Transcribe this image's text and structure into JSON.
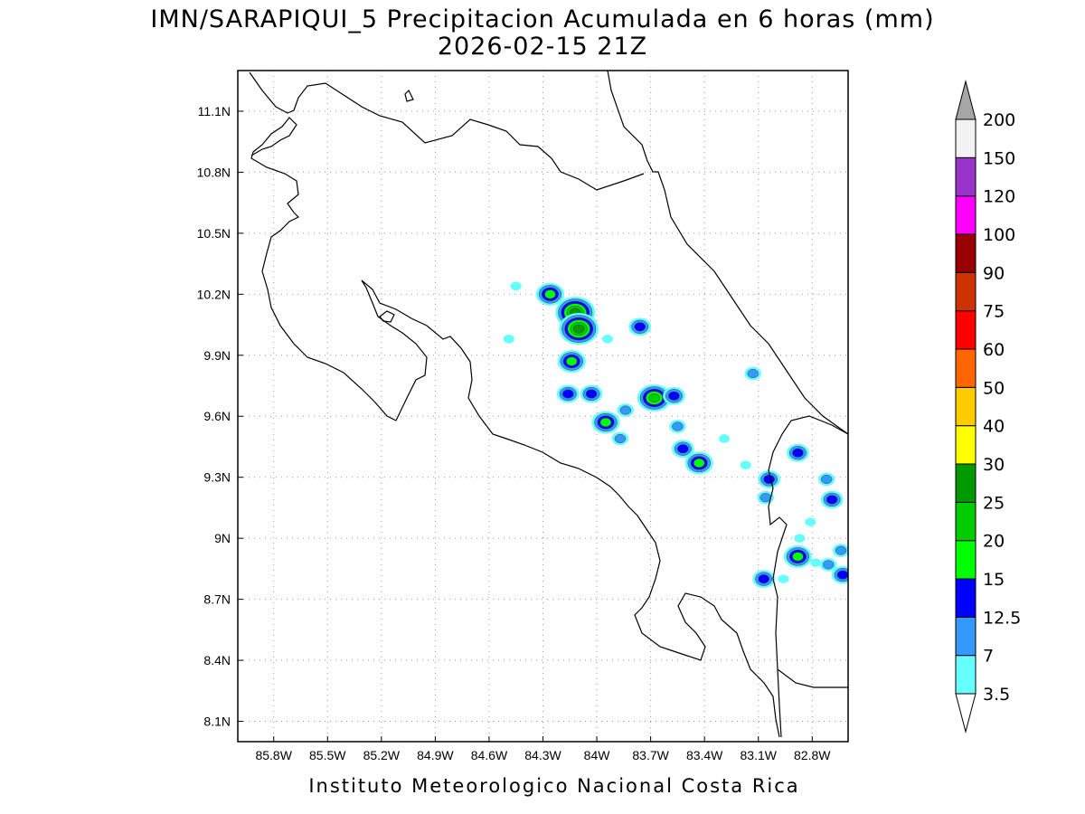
{
  "title": {
    "line1": "IMN/SARAPIQUI_5 Precipitacion Acumulada en 6 horas (mm)",
    "line2": "2026-02-15 21Z"
  },
  "footer": "Instituto Meteorologico Nacional Costa Rica",
  "map": {
    "lon_range": [
      -86.0,
      -82.6
    ],
    "lat_range": [
      8.0,
      11.3
    ],
    "x_ticks": [
      {
        "lon": -85.8,
        "label": "85.8W"
      },
      {
        "lon": -85.5,
        "label": "85.5W"
      },
      {
        "lon": -85.2,
        "label": "85.2W"
      },
      {
        "lon": -84.9,
        "label": "84.9W"
      },
      {
        "lon": -84.6,
        "label": "84.6W"
      },
      {
        "lon": -84.3,
        "label": "84.3W"
      },
      {
        "lon": -84.0,
        "label": "84W"
      },
      {
        "lon": -83.7,
        "label": "83.7W"
      },
      {
        "lon": -83.4,
        "label": "83.4W"
      },
      {
        "lon": -83.1,
        "label": "83.1W"
      },
      {
        "lon": -82.8,
        "label": "82.8W"
      }
    ],
    "y_ticks": [
      {
        "lat": 8.1,
        "label": "8.1N"
      },
      {
        "lat": 8.4,
        "label": "8.4N"
      },
      {
        "lat": 8.7,
        "label": "8.7N"
      },
      {
        "lat": 9.0,
        "label": "9N"
      },
      {
        "lat": 9.3,
        "label": "9.3N"
      },
      {
        "lat": 9.6,
        "label": "9.6N"
      },
      {
        "lat": 9.9,
        "label": "9.9N"
      },
      {
        "lat": 10.2,
        "label": "10.2N"
      },
      {
        "lat": 10.5,
        "label": "10.5N"
      },
      {
        "lat": 10.8,
        "label": "10.8N"
      },
      {
        "lat": 11.1,
        "label": "11.1N"
      }
    ],
    "grid": "dotted"
  },
  "colorbar": {
    "levels": [
      "3.5",
      "7",
      "12.5",
      "15",
      "20",
      "25",
      "30",
      "40",
      "50",
      "60",
      "75",
      "90",
      "100",
      "120",
      "150",
      "200"
    ],
    "colors": [
      "#66ffff",
      "#3399ff",
      "#0000ff",
      "#00ff00",
      "#00cc00",
      "#009900",
      "#ffff00",
      "#ffcc00",
      "#ff6600",
      "#ff0000",
      "#cc3300",
      "#990000",
      "#ff00ff",
      "#9933cc",
      "#f2f2f2"
    ],
    "under_color": "#ffffff",
    "over_color": "#a6a6a6"
  },
  "precip_cells": [
    {
      "lon": -84.26,
      "lat": 10.2,
      "level": 3
    },
    {
      "lon": -84.12,
      "lat": 10.11,
      "level": 5
    },
    {
      "lon": -84.1,
      "lat": 10.03,
      "level": 5
    },
    {
      "lon": -84.14,
      "lat": 9.87,
      "level": 3
    },
    {
      "lon": -83.76,
      "lat": 10.04,
      "level": 2
    },
    {
      "lon": -84.03,
      "lat": 9.71,
      "level": 2
    },
    {
      "lon": -84.16,
      "lat": 9.71,
      "level": 2
    },
    {
      "lon": -83.68,
      "lat": 9.69,
      "level": 4
    },
    {
      "lon": -83.57,
      "lat": 9.7,
      "level": 2
    },
    {
      "lon": -83.95,
      "lat": 9.57,
      "level": 3
    },
    {
      "lon": -83.43,
      "lat": 9.37,
      "level": 3
    },
    {
      "lon": -83.52,
      "lat": 9.44,
      "level": 2
    },
    {
      "lon": -83.55,
      "lat": 9.55,
      "level": 1
    },
    {
      "lon": -83.04,
      "lat": 9.29,
      "level": 2
    },
    {
      "lon": -83.06,
      "lat": 9.2,
      "level": 1
    },
    {
      "lon": -82.88,
      "lat": 9.42,
      "level": 2
    },
    {
      "lon": -82.88,
      "lat": 8.91,
      "level": 3
    },
    {
      "lon": -82.69,
      "lat": 9.19,
      "level": 2
    },
    {
      "lon": -82.72,
      "lat": 9.29,
      "level": 1
    },
    {
      "lon": -82.63,
      "lat": 8.82,
      "level": 2
    },
    {
      "lon": -82.64,
      "lat": 8.94,
      "level": 1
    },
    {
      "lon": -82.71,
      "lat": 8.87,
      "level": 1
    },
    {
      "lon": -83.07,
      "lat": 8.8,
      "level": 2
    },
    {
      "lon": -83.13,
      "lat": 9.81,
      "level": 1
    },
    {
      "lon": -83.87,
      "lat": 9.49,
      "level": 1
    },
    {
      "lon": -83.84,
      "lat": 9.63,
      "level": 1
    },
    {
      "lon": -84.49,
      "lat": 9.98,
      "level": 0
    },
    {
      "lon": -84.45,
      "lat": 10.24,
      "level": 0
    },
    {
      "lon": -82.81,
      "lat": 9.08,
      "level": 0
    },
    {
      "lon": -82.78,
      "lat": 8.88,
      "level": 0
    },
    {
      "lon": -83.94,
      "lat": 9.98,
      "level": 0
    },
    {
      "lon": -82.96,
      "lat": 8.8,
      "level": 0
    },
    {
      "lon": -82.87,
      "lat": 9.0,
      "level": 0
    },
    {
      "lon": -83.29,
      "lat": 9.49,
      "level": 0
    },
    {
      "lon": -83.17,
      "lat": 9.36,
      "level": 0
    }
  ]
}
